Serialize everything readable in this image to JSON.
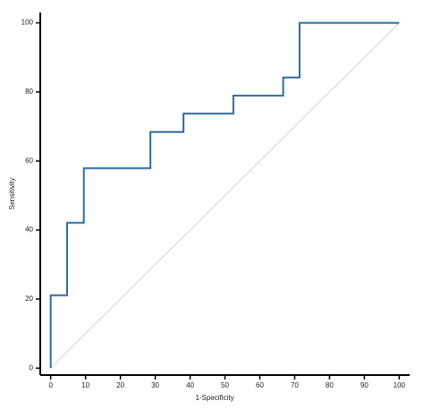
{
  "chart_data": {
    "type": "line",
    "xlabel": "1-Specificity",
    "ylabel": "Sensitivity",
    "series": [
      {
        "color": "#2f6a9e",
        "x": [
          0,
          0,
          4.7,
          4.7,
          9.5,
          9.5,
          28.6,
          28.6,
          38.1,
          38.1,
          52.4,
          52.4,
          66.7,
          66.7,
          71.4,
          71.4,
          100
        ],
        "values": [
          0,
          21.1,
          21.1,
          42.1,
          42.1,
          57.9,
          57.9,
          68.4,
          68.4,
          73.7,
          73.7,
          78.9,
          78.9,
          84.2,
          84.2,
          100,
          100
        ]
      },
      {
        "color": "#c8c8c8",
        "x": [
          0,
          100
        ],
        "values": [
          0,
          100
        ]
      }
    ],
    "xlim": [
      -3,
      103
    ],
    "ylim": [
      -2,
      103
    ],
    "xticks": [
      0,
      10,
      20,
      30,
      40,
      50,
      60,
      70,
      80,
      90,
      100
    ],
    "yticks": [
      0,
      20,
      40,
      60,
      80,
      100
    ]
  }
}
